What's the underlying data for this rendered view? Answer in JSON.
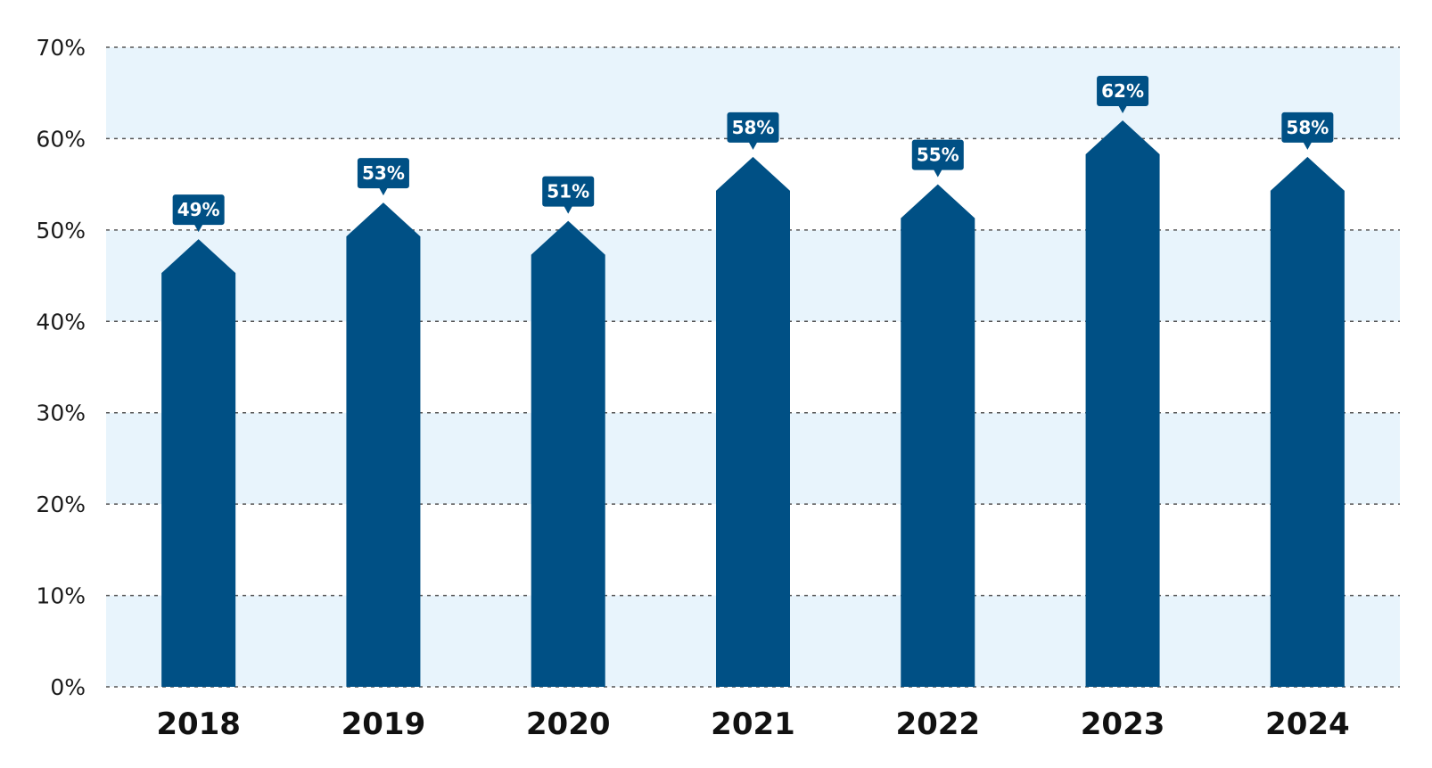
{
  "chart_data": {
    "type": "bar",
    "categories": [
      "2018",
      "2019",
      "2020",
      "2021",
      "2022",
      "2023",
      "2024"
    ],
    "values": [
      49,
      53,
      51,
      58,
      55,
      62,
      58
    ],
    "data_labels": [
      "49%",
      "53%",
      "51%",
      "58%",
      "55%",
      "62%",
      "58%"
    ],
    "title": "",
    "xlabel": "",
    "ylabel": "",
    "ylim": [
      0,
      70
    ],
    "yticks": [
      0,
      10,
      20,
      30,
      40,
      50,
      60,
      70
    ],
    "ytick_labels": [
      "0%",
      "10%",
      "20%",
      "30%",
      "40%",
      "50%",
      "60%",
      "70%"
    ],
    "grid": true,
    "legend": "none",
    "colors": {
      "bar": "#005085",
      "band_light": "#e8f4fc",
      "band_white": "#ffffff",
      "grid": "#555555",
      "label_text": "#ffffff"
    }
  }
}
